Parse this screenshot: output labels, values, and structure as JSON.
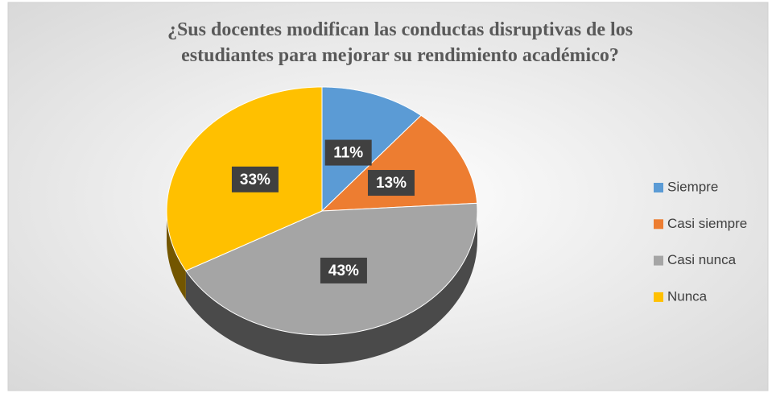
{
  "chart_data": {
    "type": "pie",
    "title": "¿Sus docentes modifican las conductas disruptivas de los estudiantes para mejorar su rendimiento académico?",
    "title_lines": [
      "¿Sus docentes modifican las conductas disruptivas de los",
      "estudiantes para mejorar su rendimiento académico?"
    ],
    "categories": [
      "Siempre",
      "Casi siempre",
      "Casi nunca",
      "Nunca"
    ],
    "values": [
      11,
      13,
      43,
      33
    ],
    "value_labels": [
      "11%",
      "13%",
      "43%",
      "33%"
    ],
    "colors": [
      "#5b9bd5",
      "#ed7d31",
      "#a5a5a5",
      "#ffc000"
    ],
    "legend": "right"
  }
}
